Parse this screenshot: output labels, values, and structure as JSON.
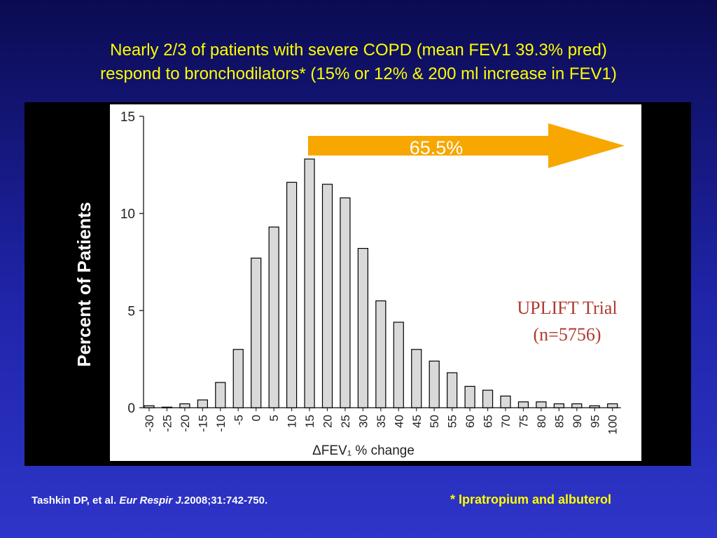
{
  "slide": {
    "title_line1": "Nearly 2/3 of patients with severe COPD (mean FEV1 39.3% pred)",
    "title_line2": "respond to bronchodilators* (15% or 12% & 200 ml increase in FEV1)",
    "citation_authors": "Tashkin DP, et al. ",
    "citation_journal": "Eur Respir J.",
    "citation_details": "2008;31:742-750.",
    "footnote": "* Ipratropium and albuterol"
  },
  "chart_data": {
    "type": "bar",
    "title": "",
    "xlabel": "ΔFEV₁ % change",
    "ylabel": "Percent of Patients",
    "ylim": [
      0,
      15
    ],
    "yticks": [
      "0",
      "5",
      "10",
      "15"
    ],
    "categories": [
      "-30",
      "-25",
      "-20",
      "-15",
      "-10",
      "-5",
      "0",
      "5",
      "10",
      "15",
      "20",
      "25",
      "30",
      "35",
      "40",
      "45",
      "50",
      "55",
      "60",
      "65",
      "70",
      "75",
      "80",
      "85",
      "90",
      "95",
      "100"
    ],
    "values": [
      0.1,
      0,
      0.2,
      0.4,
      1.3,
      3.0,
      7.7,
      9.3,
      11.6,
      12.8,
      11.5,
      10.8,
      8.2,
      5.5,
      4.4,
      3.0,
      2.4,
      1.8,
      1.1,
      0.9,
      0.6,
      0.3,
      0.3,
      0.2,
      0.2,
      0.1,
      0.2
    ],
    "annotation_arrow": "65.5%",
    "annotation_text_line1": "UPLIFT Trial",
    "annotation_text_line2": "(n=5756)",
    "colors": {
      "bar_fill": "#d9d9d9",
      "bar_stroke": "#000000",
      "arrow": "#f7a700",
      "annotation": "#b03a2e",
      "title": "#ffff00"
    }
  }
}
